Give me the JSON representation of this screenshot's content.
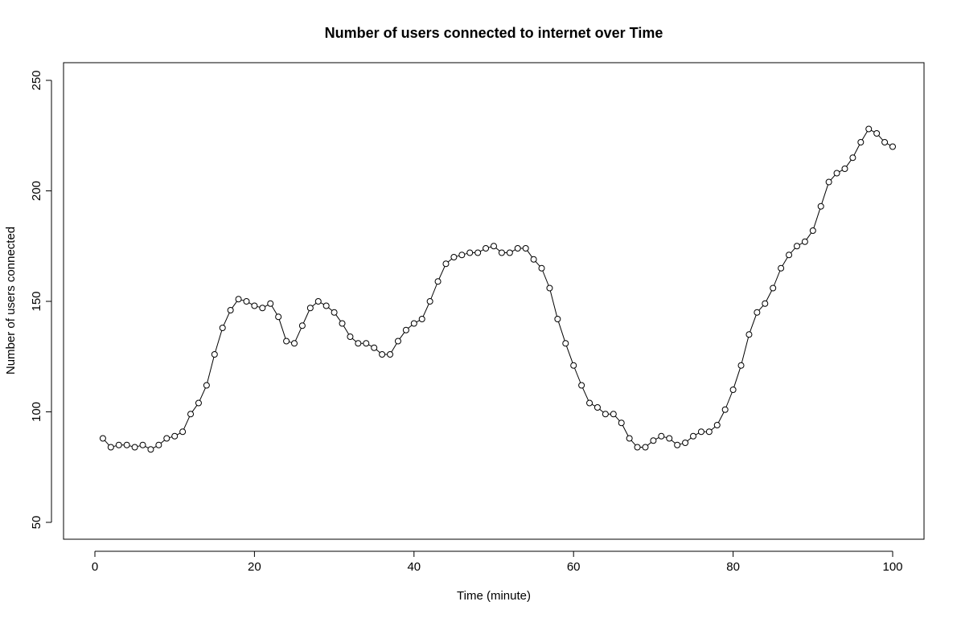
{
  "chart_data": {
    "type": "line",
    "title": "Number of users connected to internet over Time",
    "xlabel": "Time (minute)",
    "ylabel": "Number of users connected",
    "xlim": [
      1,
      100
    ],
    "ylim": [
      50,
      250
    ],
    "xticks": [
      0,
      20,
      40,
      60,
      80,
      100
    ],
    "yticks": [
      50,
      100,
      150,
      200,
      250
    ],
    "grid": false,
    "marker": "open-circle",
    "line_color": "#000000",
    "x": [
      1,
      2,
      3,
      4,
      5,
      6,
      7,
      8,
      9,
      10,
      11,
      12,
      13,
      14,
      15,
      16,
      17,
      18,
      19,
      20,
      21,
      22,
      23,
      24,
      25,
      26,
      27,
      28,
      29,
      30,
      31,
      32,
      33,
      34,
      35,
      36,
      37,
      38,
      39,
      40,
      41,
      42,
      43,
      44,
      45,
      46,
      47,
      48,
      49,
      50,
      51,
      52,
      53,
      54,
      55,
      56,
      57,
      58,
      59,
      60,
      61,
      62,
      63,
      64,
      65,
      66,
      67,
      68,
      69,
      70,
      71,
      72,
      73,
      74,
      75,
      76,
      77,
      78,
      79,
      80,
      81,
      82,
      83,
      84,
      85,
      86,
      87,
      88,
      89,
      90,
      91,
      92,
      93,
      94,
      95,
      96,
      97,
      98,
      99,
      100
    ],
    "series": [
      {
        "values": [
          88,
          84,
          85,
          85,
          84,
          85,
          83,
          85,
          88,
          89,
          91,
          99,
          104,
          112,
          126,
          138,
          146,
          151,
          150,
          148,
          147,
          149,
          143,
          132,
          131,
          139,
          147,
          150,
          148,
          145,
          140,
          134,
          131,
          131,
          129,
          126,
          126,
          132,
          137,
          140,
          142,
          150,
          159,
          167,
          170,
          171,
          172,
          172,
          174,
          175,
          172,
          172,
          174,
          174,
          169,
          165,
          156,
          142,
          131,
          121,
          112,
          104,
          102,
          99,
          99,
          95,
          88,
          84,
          84,
          87,
          89,
          88,
          85,
          86,
          89,
          91,
          91,
          94,
          101,
          110,
          121,
          135,
          145,
          149,
          156,
          165,
          171,
          175,
          177,
          182,
          193,
          204,
          208,
          210,
          215,
          222,
          228,
          226,
          222,
          220
        ]
      }
    ]
  }
}
